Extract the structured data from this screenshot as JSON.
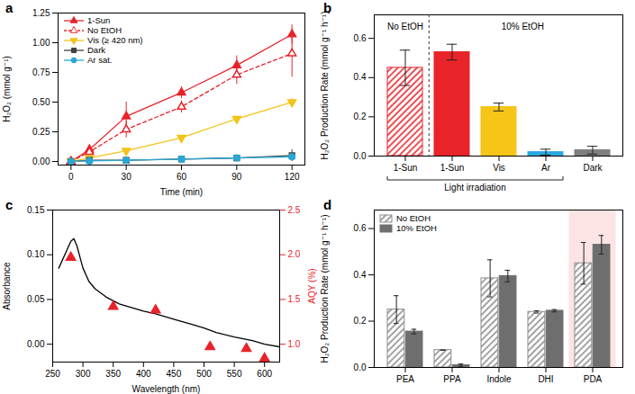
{
  "chart_data": [
    {
      "title": "a",
      "type": "line",
      "x_label": "Time (min)",
      "y_label": "H₂O₂ (mmol g⁻¹)",
      "x": [
        0,
        10,
        30,
        60,
        90,
        120
      ],
      "xlim": [
        -7,
        127
      ],
      "xticks": [
        0,
        30,
        60,
        90,
        120
      ],
      "ylim": [
        -0.03,
        1.25
      ],
      "yticks": [
        {
          "value": 0,
          "label": "0.00"
        },
        0.25,
        {
          "value": 0.5,
          "label": "0.50"
        },
        0.75,
        {
          "value": 1,
          "label": "1.00"
        },
        1.25
      ],
      "legend": "top-left",
      "series": [
        {
          "name": "1-Sun",
          "color": "#e8232a",
          "marker": "triangle",
          "line_style": "solid",
          "values": [
            0,
            0.1,
            0.38,
            0.58,
            0.81,
            1.07
          ],
          "error": [
            0.01,
            0.03,
            0.12,
            0.05,
            0.08,
            0.08
          ]
        },
        {
          "name": "No EtOH",
          "color": "#e8232a",
          "marker": "triangle-open",
          "line_style": "dashed",
          "values": [
            0,
            0.08,
            0.27,
            0.46,
            0.73,
            0.91
          ],
          "error": [
            0.01,
            0.02,
            0.07,
            0.05,
            0.08,
            0.2
          ]
        },
        {
          "name": "Vis (≥ 420 nm)",
          "color": "#f2c318",
          "marker": "triangle-down",
          "line_style": "solid",
          "values": [
            0,
            0.03,
            0.09,
            0.2,
            0.36,
            0.5
          ],
          "error": [
            0.005,
            0.01,
            0.01,
            0.01,
            0.01,
            0.03
          ]
        },
        {
          "name": "Dark",
          "color": "#404040",
          "marker": "square",
          "line_style": "solid",
          "values": [
            0,
            0.01,
            0.01,
            0.02,
            0.03,
            0.05
          ],
          "error": [
            0.005,
            0.005,
            0.005,
            0.01,
            0.01,
            0.05
          ]
        },
        {
          "name": "Ar sat.",
          "color": "#2aa7d6",
          "marker": "circle",
          "line_style": "solid",
          "values": [
            0,
            0.005,
            0.01,
            0.02,
            0.03,
            0.04
          ],
          "error": [
            0.005,
            0.005,
            0.005,
            0.005,
            0.01,
            0.01
          ]
        }
      ]
    },
    {
      "title": "b",
      "type": "bar",
      "y_label": "H₂O₂ Production Rate (mmol g⁻¹ h⁻¹)",
      "categories": [
        "1-Sun",
        "1-Sun",
        "Vis",
        "Ar",
        "Dark"
      ],
      "ylim": [
        0,
        0.72
      ],
      "yticks": [
        {
          "value": 0,
          "label": "0.0"
        },
        0.2,
        0.4,
        0.6
      ],
      "annotations": [
        "Light irradiation"
      ],
      "series": [
        {
          "name": "No EtOH",
          "color": "#e8232a",
          "marker": "hatch",
          "values": [
            0.45,
            null,
            null,
            null,
            null
          ],
          "error": [
            0.09,
            null,
            null,
            null,
            null
          ]
        },
        {
          "name": "10% EtOH",
          "colors": [
            null,
            "#e8232a",
            "#f5c518",
            "#29a9e0",
            "#7f7f7f"
          ],
          "values": [
            null,
            0.53,
            0.25,
            0.02,
            0.03
          ],
          "error": [
            null,
            0.04,
            0.02,
            0.015,
            0.02
          ]
        }
      ]
    },
    {
      "title": "c",
      "type": "line",
      "x_label": "Wavelength (nm)",
      "y_label": "Absorbance",
      "y2_label": "AQY (%)",
      "xlim": [
        250,
        625
      ],
      "xticks": [
        250,
        300,
        350,
        400,
        450,
        500,
        550,
        600
      ],
      "ylim": [
        -0.02,
        0.15
      ],
      "yticks": [
        {
          "value": 0,
          "label": "0.00"
        },
        0.05,
        {
          "value": 0.1,
          "label": "0.10"
        },
        0.15
      ],
      "y2lim": [
        0.8,
        2.5
      ],
      "y2ticks": [
        {
          "value": 1,
          "label": "1.0"
        },
        1.5,
        {
          "value": 2,
          "label": "2.0"
        },
        2.5
      ],
      "series": [
        {
          "name": "Absorbance",
          "type": "line",
          "color": "#000000",
          "x": [
            260,
            270,
            280,
            285,
            290,
            300,
            310,
            320,
            340,
            360,
            380,
            400,
            420,
            450,
            480,
            500,
            520,
            550,
            580,
            600,
            625
          ],
          "values": [
            0.085,
            0.1,
            0.115,
            0.118,
            0.11,
            0.085,
            0.07,
            0.062,
            0.052,
            0.045,
            0.041,
            0.037,
            0.034,
            0.028,
            0.022,
            0.018,
            0.013,
            0.008,
            0.004,
            0.0,
            -0.003
          ]
        },
        {
          "name": "AQY (%)",
          "type": "scatter",
          "axis": "y2",
          "color": "#e8232a",
          "marker": "triangle",
          "x": [
            280,
            350,
            420,
            510,
            570,
            600
          ],
          "values": [
            1.97,
            1.42,
            1.38,
            0.97,
            0.95,
            0.84
          ]
        }
      ]
    },
    {
      "title": "d",
      "type": "bar",
      "y_label": "H₂O₂ Production Rate (mmol g⁻¹ h⁻¹)",
      "categories": [
        "PEA",
        "PPA",
        "Indole",
        "DHI",
        "PDA"
      ],
      "ylim": [
        0,
        0.68
      ],
      "yticks": [
        {
          "value": 0,
          "label": "0.0"
        },
        0.2,
        0.4,
        0.6
      ],
      "legend": "top-left",
      "series": [
        {
          "name": "No EtOH",
          "color": "#8c8c8c",
          "marker": "hatch",
          "values": [
            0.25,
            0.075,
            0.385,
            0.24,
            0.45
          ],
          "error": [
            0.06,
            0.0,
            0.08,
            0.005,
            0.09
          ]
        },
        {
          "name": "10% EtOH",
          "color": "#6e6e6e",
          "values": [
            0.155,
            0.01,
            0.395,
            0.245,
            0.53
          ],
          "error": [
            0.01,
            0.005,
            0.025,
            0.005,
            0.04
          ]
        }
      ]
    }
  ]
}
